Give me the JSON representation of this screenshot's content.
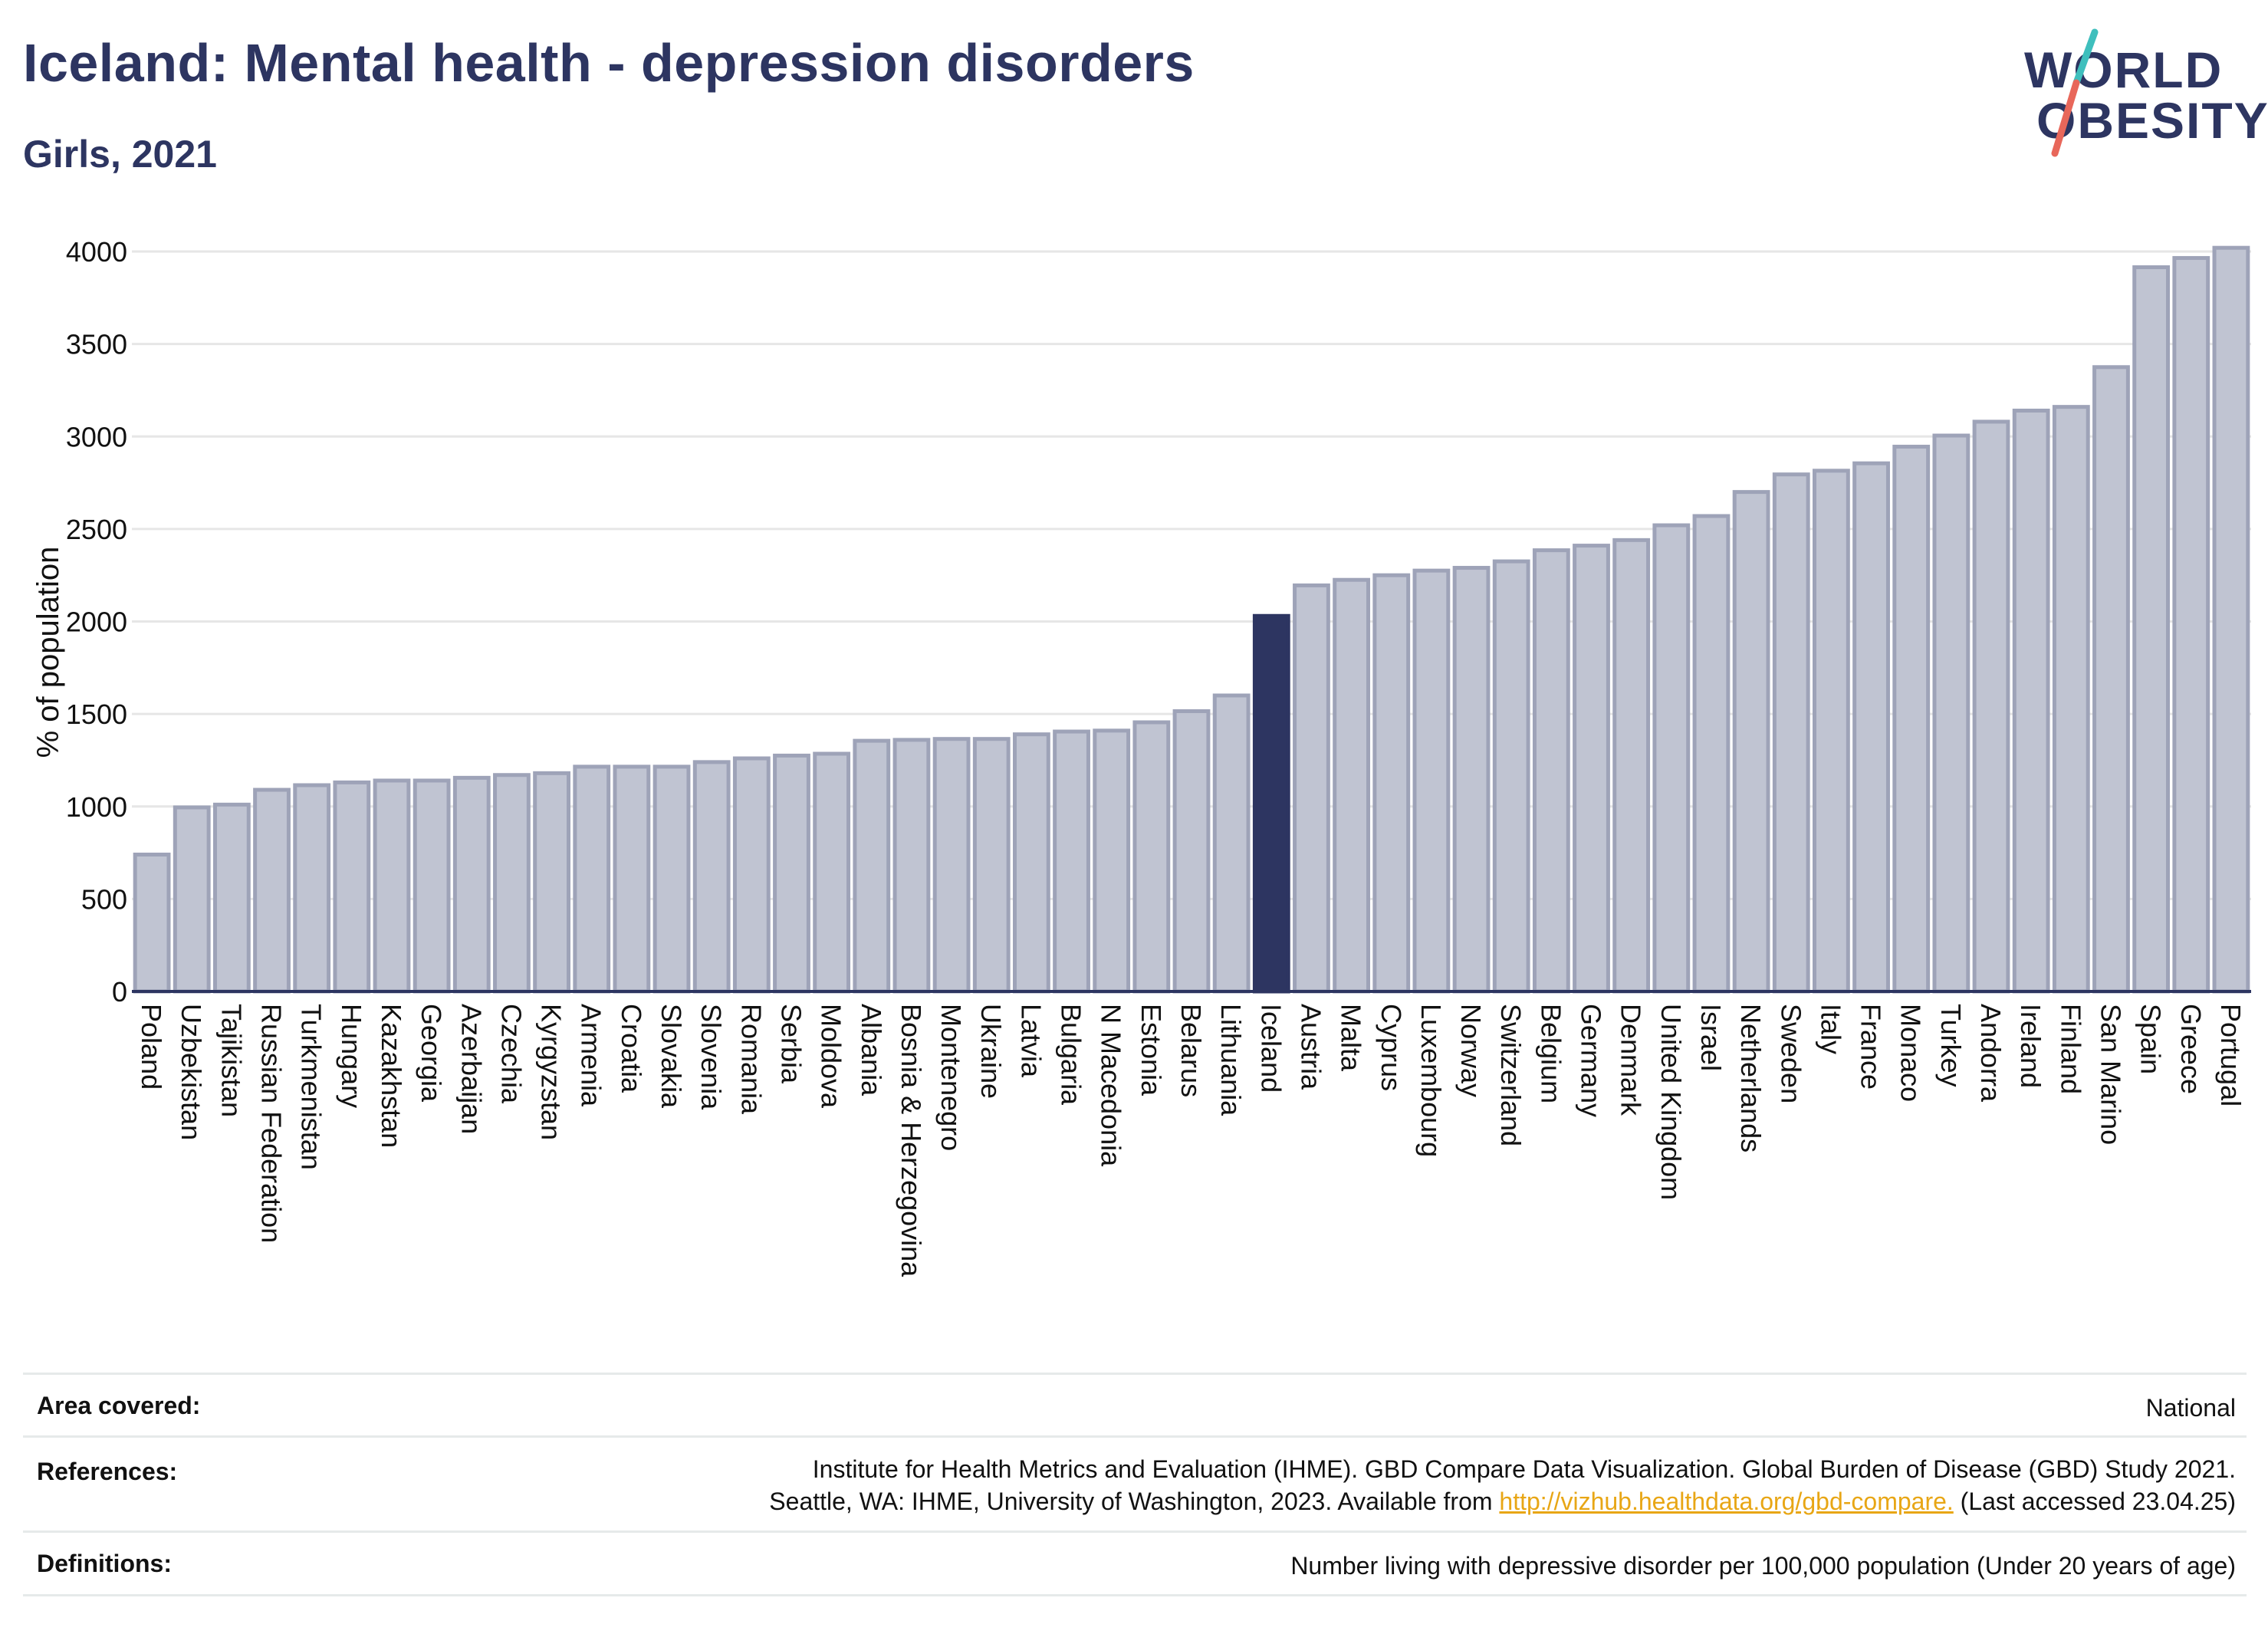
{
  "header": {
    "title": "Iceland: Mental health - depression disorders",
    "subtitle": "Girls, 2021"
  },
  "logo": {
    "line1": "WORLD",
    "line2": "OBESITY",
    "accent_colors": [
      "#3fbfbd",
      "#e8675a"
    ]
  },
  "colors": {
    "bar": "#c0c4d2",
    "bar_edge": "#9ea3b8",
    "highlight": "#2d3561",
    "grid": "#e6e6e6",
    "axis": "#2d3561"
  },
  "chart_data": {
    "type": "bar",
    "ylabel": "% of population",
    "ylim": [
      0,
      4000
    ],
    "yticks": [
      0,
      500,
      1000,
      1500,
      2000,
      2500,
      3000,
      3500,
      4000
    ],
    "grid": true,
    "highlight": "Iceland",
    "categories": [
      "Poland",
      "Uzbekistan",
      "Tajikistan",
      "Russian Federation",
      "Turkmenistan",
      "Hungary",
      "Kazakhstan",
      "Georgia",
      "Azerbaijan",
      "Czechia",
      "Kyrgyzstan",
      "Armenia",
      "Croatia",
      "Slovakia",
      "Slovenia",
      "Romania",
      "Serbia",
      "Moldova",
      "Albania",
      "Bosnia & Herzegovina",
      "Montenegro",
      "Ukraine",
      "Latvia",
      "Bulgaria",
      "N Macedonia",
      "Estonia",
      "Belarus",
      "Lithuania",
      "Iceland",
      "Austria",
      "Malta",
      "Cyprus",
      "Luxembourg",
      "Norway",
      "Switzerland",
      "Belgium",
      "Germany",
      "Denmark",
      "United Kingdom",
      "Israel",
      "Netherlands",
      "Sweden",
      "Italy",
      "France",
      "Monaco",
      "Turkey",
      "Andorra",
      "Ireland",
      "Finland",
      "San Marino",
      "Spain",
      "Greece",
      "Portugal"
    ],
    "values": [
      740,
      995,
      1010,
      1090,
      1115,
      1130,
      1140,
      1140,
      1155,
      1170,
      1180,
      1215,
      1215,
      1215,
      1240,
      1260,
      1275,
      1285,
      1355,
      1360,
      1365,
      1365,
      1390,
      1405,
      1410,
      1455,
      1515,
      1600,
      2030,
      2195,
      2225,
      2250,
      2275,
      2290,
      2325,
      2385,
      2410,
      2440,
      2520,
      2570,
      2700,
      2795,
      2815,
      2855,
      2945,
      3005,
      3080,
      3140,
      3160,
      3375,
      3915,
      3965,
      4020
    ]
  },
  "info": {
    "area_label": "Area covered:",
    "area_value": "National",
    "refs_label": "References:",
    "refs_line1": "Institute for Health Metrics and Evaluation (IHME). GBD Compare Data Visualization. Global Burden of Disease (GBD) Study 2021.",
    "refs_line2_pre": "Seattle, WA: IHME, University of Washington, 2023. Available from ",
    "refs_link": "http://vizhub.healthdata.org/gbd-compare.",
    "refs_line2_post": " (Last accessed 23.04.25)",
    "def_label": "Definitions:",
    "def_value": "Number living with depressive disorder per 100,000 population (Under 20 years of age)"
  }
}
